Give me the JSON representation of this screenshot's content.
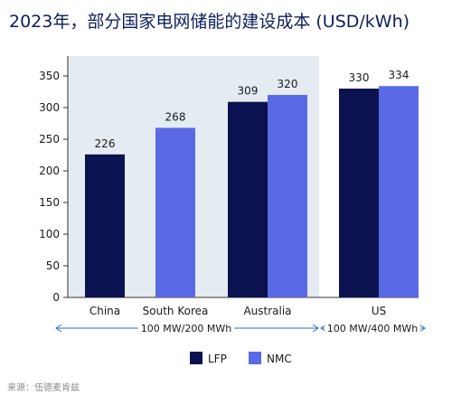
{
  "title": "2023年，部分国家电网储能的建设成本 (USD/kWh)",
  "source": "来源：伍德麦肯兹",
  "chart_data": {
    "type": "bar",
    "categories": [
      "China",
      "South Korea",
      "Australia",
      "US"
    ],
    "series": [
      {
        "name": "LFP",
        "color": "#0c1250",
        "values": [
          226,
          null,
          309,
          330
        ]
      },
      {
        "name": "NMC",
        "color": "#5a6ae6",
        "values": [
          null,
          268,
          320,
          334
        ]
      }
    ],
    "ylim": [
      0,
      350
    ],
    "yticks": [
      0,
      50,
      100,
      150,
      200,
      250,
      300,
      350
    ],
    "grid": false,
    "legend_placement": "bottom",
    "groups": [
      {
        "label": "100 MW/200 MWh",
        "categories": [
          "China",
          "South Korea",
          "Australia"
        ]
      },
      {
        "label": "100 MW/400 MWh",
        "categories": [
          "US"
        ]
      }
    ]
  }
}
